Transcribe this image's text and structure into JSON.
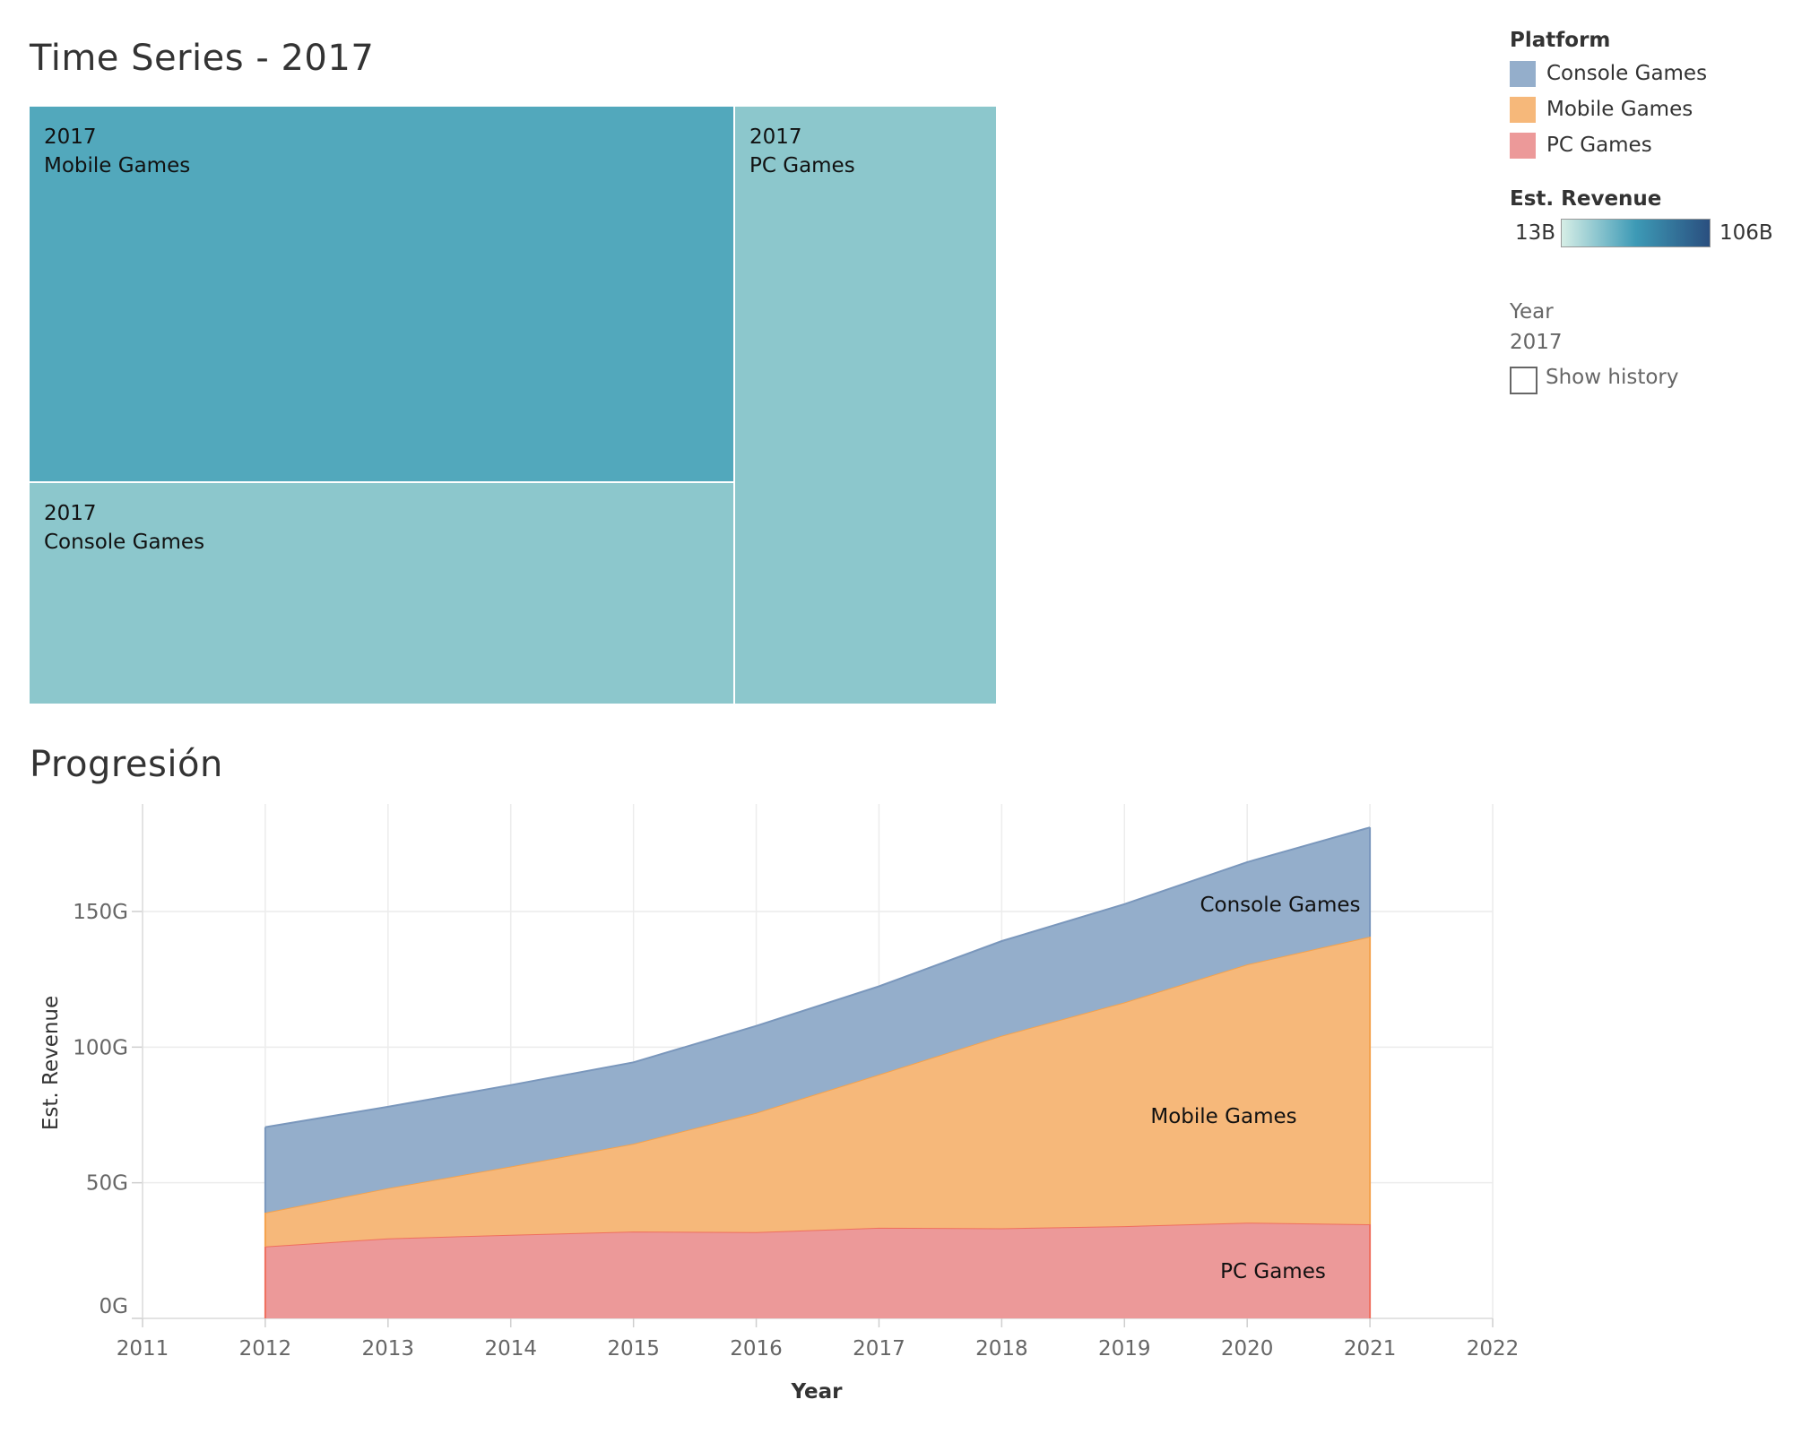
{
  "treemap": {
    "title": "Time Series - 2017",
    "tiles": [
      {
        "year": "2017",
        "platform": "Mobile Games",
        "color": "#52a8bc"
      },
      {
        "year": "2017",
        "platform": "Console Games",
        "color": "#8cc7cc"
      },
      {
        "year": "2017",
        "platform": "PC Games",
        "color": "#8cc7cc"
      }
    ]
  },
  "legend": {
    "platform_title": "Platform",
    "platforms": [
      {
        "label": "Console Games",
        "color": "#94aecb"
      },
      {
        "label": "Mobile Games",
        "color": "#f6b87a"
      },
      {
        "label": "PC Games",
        "color": "#ec9999"
      }
    ],
    "revenue_title": "Est. Revenue",
    "revenue_min": "13B",
    "revenue_max": "106B",
    "gradient_colors": [
      "#d6eee6",
      "#3d9ab6",
      "#2a4f7f"
    ]
  },
  "filter": {
    "label": "Year",
    "value": "2017",
    "show_history_label": "Show history",
    "show_history_checked": false
  },
  "chart_data": {
    "type": "area",
    "title": "Progresión",
    "xlabel": "Year",
    "ylabel": "Est. Revenue",
    "xlim": [
      2011,
      2022
    ],
    "x_ticks": [
      "2011",
      "2012",
      "2013",
      "2014",
      "2015",
      "2016",
      "2017",
      "2018",
      "2019",
      "2020",
      "2021",
      "2022"
    ],
    "y_ticks": [
      "0G",
      "50G",
      "100G",
      "150G"
    ],
    "ylim": [
      0,
      180
    ],
    "stacked": true,
    "x": [
      2012,
      2013,
      2014,
      2015,
      2016,
      2017,
      2018,
      2019,
      2020,
      2021
    ],
    "series": [
      {
        "name": "PC Games",
        "color": "#ec9999",
        "line": "#ef6f5e",
        "values": [
          26.5,
          29.5,
          30.8,
          32.0,
          31.8,
          33.4,
          33.2,
          34.0,
          35.3,
          34.7
        ]
      },
      {
        "name": "Mobile Games",
        "color": "#f6b87a",
        "line": "#f4a24d",
        "values": [
          12.5,
          18.5,
          25.2,
          32.4,
          44.0,
          56.5,
          71.0,
          82.5,
          95.2,
          106.0
        ]
      },
      {
        "name": "Console Games",
        "color": "#94aecb",
        "line": "#7a97bc",
        "values": [
          31.5,
          30.0,
          30.0,
          30.0,
          32.0,
          32.5,
          34.9,
          36.2,
          37.7,
          40.3
        ]
      }
    ],
    "grid": true
  }
}
